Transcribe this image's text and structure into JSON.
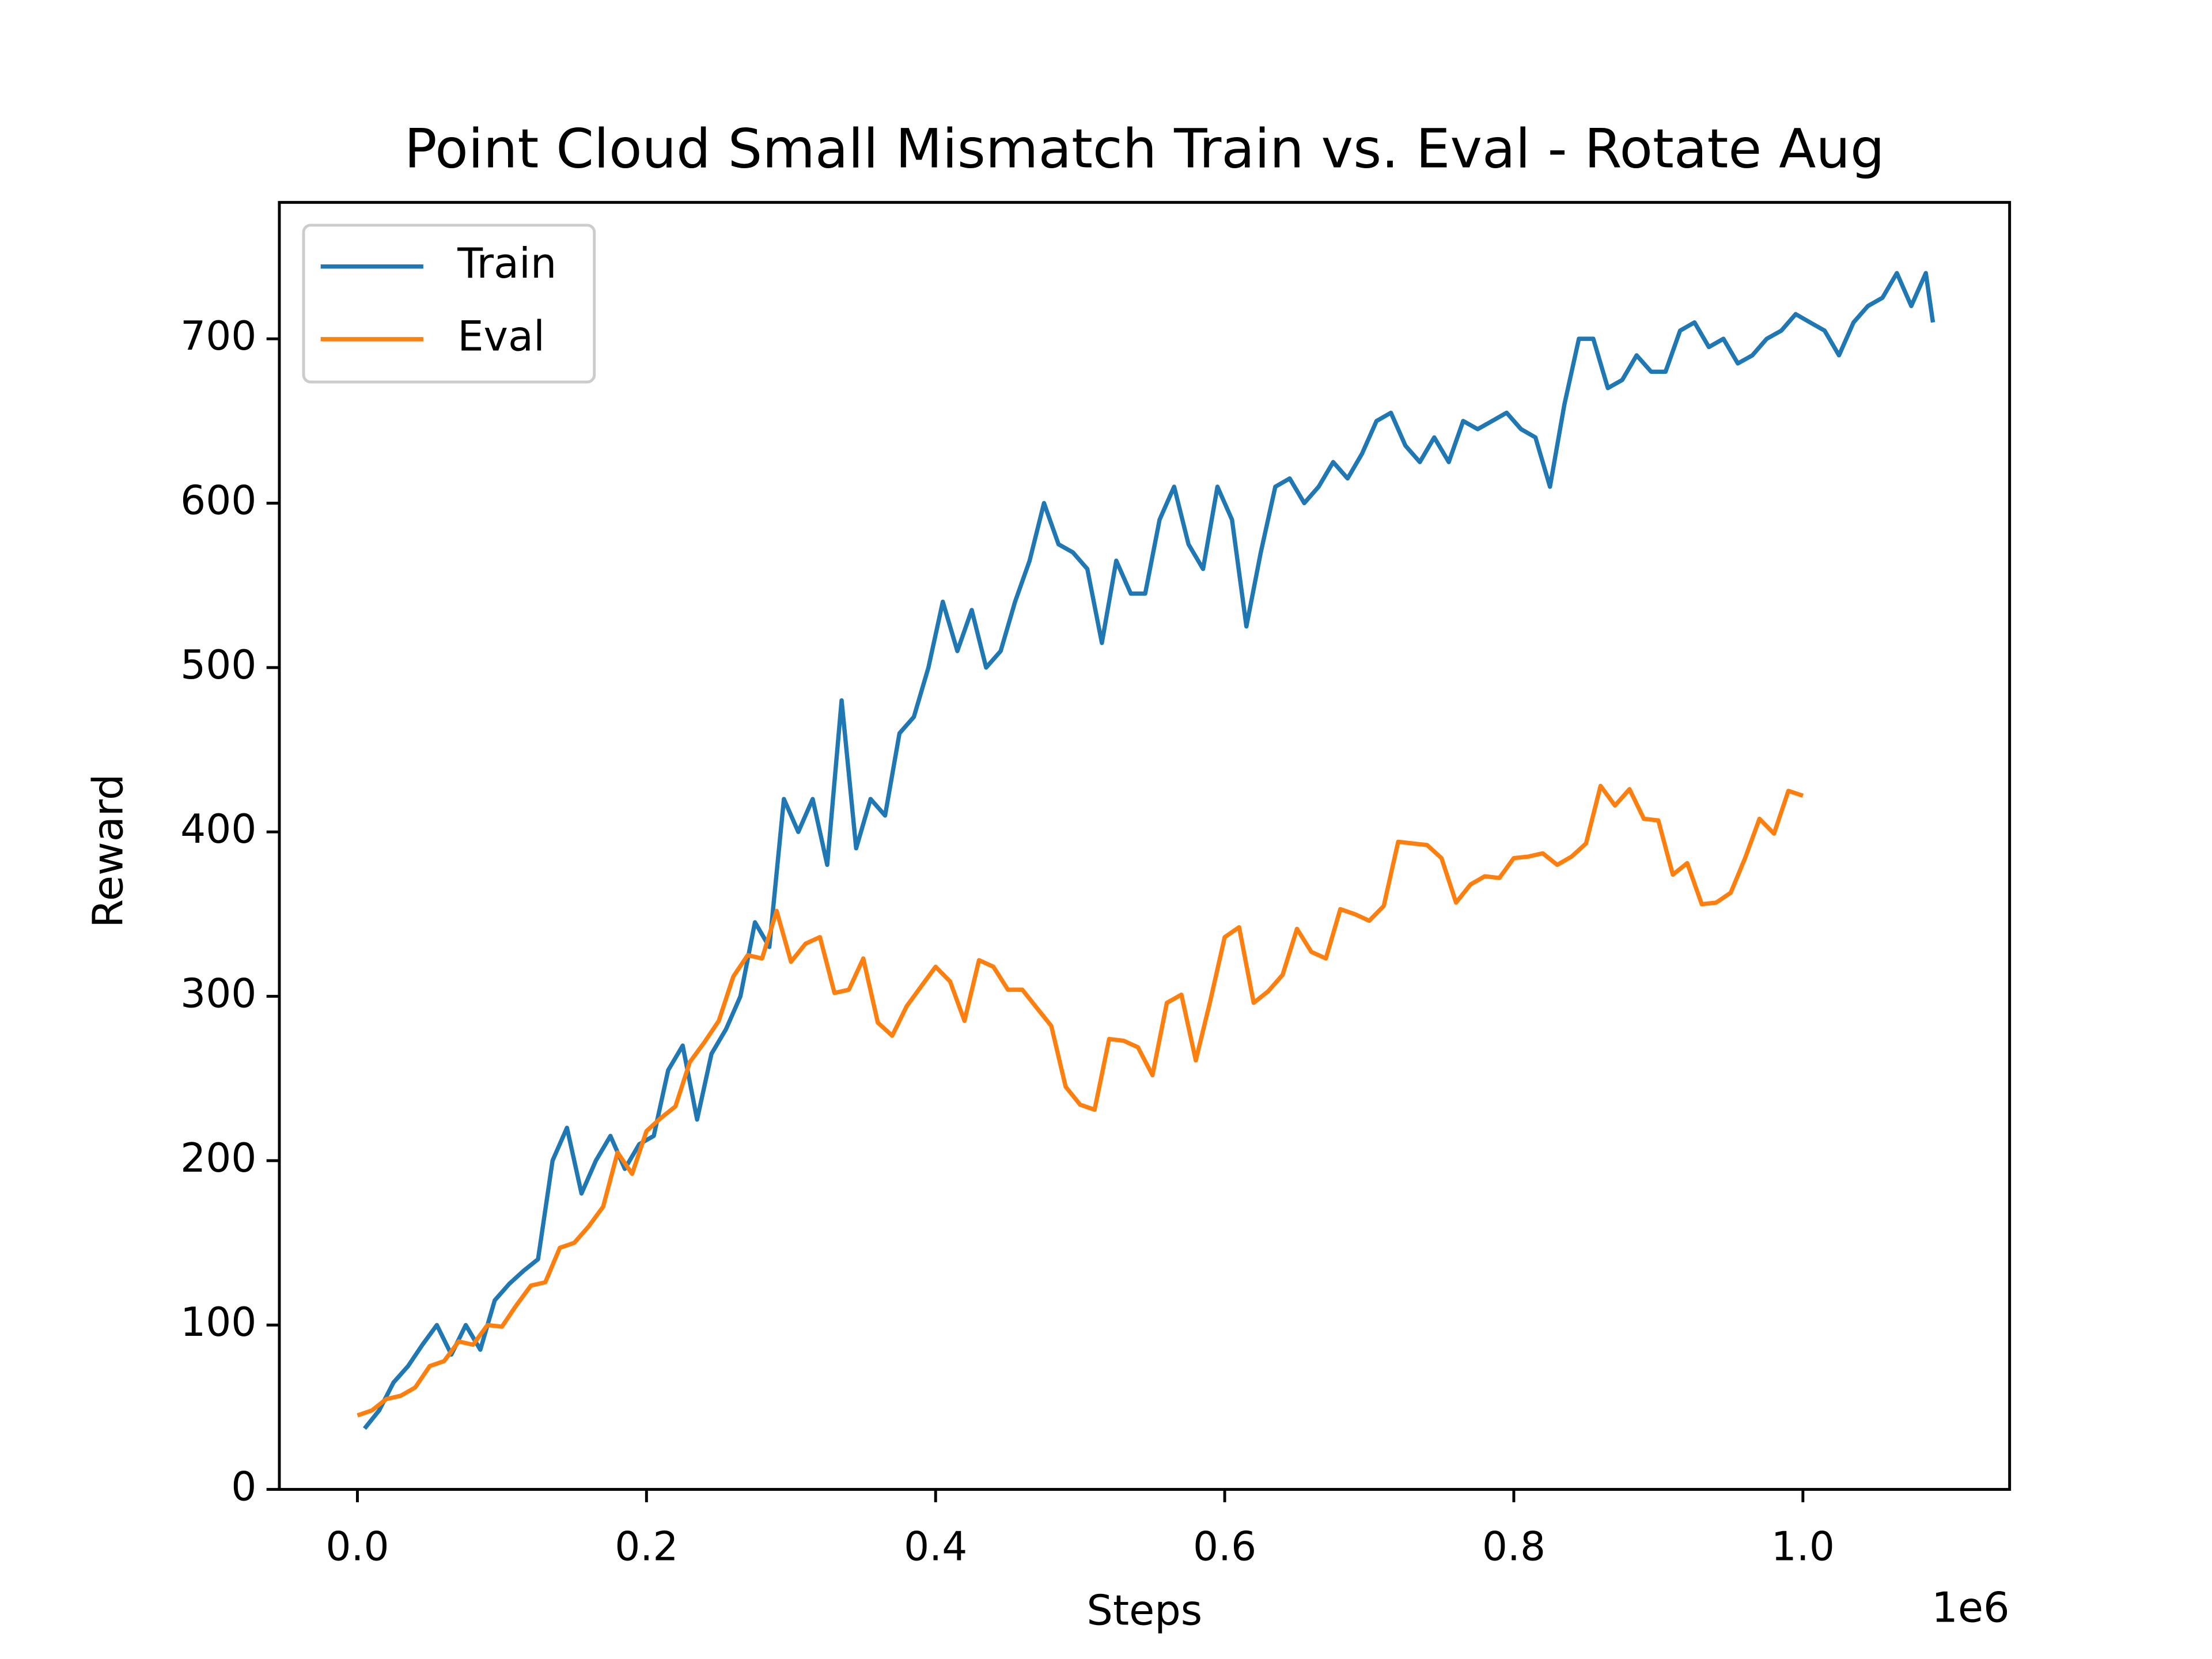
{
  "chart_data": {
    "type": "line",
    "title": "Point Cloud Small Mismatch Train vs. Eval - Rotate Aug",
    "x_label": "Steps",
    "y_label": "Reward",
    "x_offset_label": "1e6",
    "legend": "upper left",
    "xlim": [
      -54000,
      1143000
    ],
    "ylim": [
      0,
      783
    ],
    "xticks": [
      {
        "value": 0,
        "label": "0.0"
      },
      {
        "value": 200000,
        "label": "0.2"
      },
      {
        "value": 400000,
        "label": "0.4"
      },
      {
        "value": 600000,
        "label": "0.6"
      },
      {
        "value": 800000,
        "label": "0.8"
      },
      {
        "value": 1000000,
        "label": "1.0"
      }
    ],
    "yticks": [
      0,
      100,
      200,
      300,
      400,
      500,
      600,
      700
    ],
    "series": [
      {
        "name": "Train",
        "color": "#1f77b4",
        "x": [
          5000,
          15000,
          25000,
          35000,
          45000,
          55000,
          65000,
          75000,
          85000,
          95000,
          105000,
          115000,
          125000,
          135000,
          145000,
          155000,
          165000,
          175000,
          185000,
          195000,
          205000,
          215000,
          225000,
          235000,
          245000,
          255000,
          265000,
          275000,
          285000,
          295000,
          305000,
          315000,
          325000,
          335000,
          345000,
          355000,
          365000,
          375000,
          385000,
          395000,
          405000,
          415000,
          425000,
          435000,
          445000,
          455000,
          465000,
          475000,
          485000,
          495000,
          505000,
          515000,
          525000,
          535000,
          545000,
          555000,
          565000,
          575000,
          585000,
          595000,
          605000,
          615000,
          625000,
          635000,
          645000,
          655000,
          665000,
          675000,
          685000,
          695000,
          705000,
          715000,
          725000,
          735000,
          745000,
          755000,
          765000,
          775000,
          785000,
          795000,
          805000,
          815000,
          825000,
          835000,
          845000,
          855000,
          865000,
          875000,
          885000,
          895000,
          905000,
          915000,
          925000,
          935000,
          945000,
          955000,
          965000,
          975000,
          985000,
          995000,
          1005000,
          1015000,
          1025000,
          1035000,
          1045000,
          1055000,
          1065000,
          1075000,
          1085000,
          1090000
        ],
        "values": [
          37,
          48,
          65,
          75,
          88,
          100,
          82,
          100,
          85,
          115,
          125,
          133,
          140,
          200,
          220,
          180,
          200,
          215,
          195,
          210,
          215,
          255,
          270,
          225,
          265,
          280,
          300,
          345,
          330,
          420,
          400,
          420,
          380,
          480,
          390,
          420,
          410,
          460,
          470,
          500,
          540,
          510,
          535,
          500,
          510,
          540,
          565,
          600,
          575,
          570,
          560,
          515,
          565,
          545,
          545,
          590,
          610,
          575,
          560,
          610,
          590,
          525,
          570,
          610,
          615,
          600,
          610,
          625,
          615,
          630,
          650,
          655,
          635,
          625,
          640,
          625,
          650,
          645,
          650,
          655,
          645,
          640,
          610,
          660,
          700,
          700,
          670,
          675,
          690,
          680,
          680,
          705,
          710,
          695,
          700,
          685,
          690,
          700,
          705,
          715,
          710,
          705,
          690,
          710,
          720,
          725,
          740,
          720,
          740,
          710
        ]
      },
      {
        "name": "Eval",
        "color": "#ff7f0e",
        "x": [
          0,
          10000,
          20000,
          30000,
          40000,
          50000,
          60000,
          70000,
          80000,
          90000,
          100000,
          110000,
          120000,
          130000,
          140000,
          150000,
          160000,
          170000,
          180000,
          190000,
          200000,
          210000,
          220000,
          230000,
          240000,
          250000,
          260000,
          270000,
          280000,
          290000,
          300000,
          310000,
          320000,
          330000,
          340000,
          350000,
          360000,
          370000,
          380000,
          390000,
          400000,
          410000,
          420000,
          430000,
          440000,
          450000,
          460000,
          470000,
          480000,
          490000,
          500000,
          510000,
          520000,
          530000,
          540000,
          550000,
          560000,
          570000,
          580000,
          590000,
          600000,
          610000,
          620000,
          630000,
          640000,
          650000,
          660000,
          670000,
          680000,
          690000,
          700000,
          710000,
          720000,
          730000,
          740000,
          750000,
          760000,
          770000,
          780000,
          790000,
          800000,
          810000,
          820000,
          830000,
          840000,
          850000,
          860000,
          870000,
          880000,
          890000,
          900000,
          910000,
          920000,
          930000,
          940000,
          950000,
          960000,
          970000,
          980000,
          990000,
          1000000
        ],
        "values": [
          45,
          48,
          55,
          57,
          62,
          75,
          78,
          90,
          88,
          100,
          99,
          112,
          124,
          126,
          147,
          150,
          160,
          172,
          205,
          192,
          218,
          226,
          233,
          260,
          272,
          285,
          312,
          325,
          323,
          352,
          321,
          332,
          336,
          302,
          304,
          323,
          284,
          276,
          294,
          306,
          318,
          309,
          285,
          322,
          318,
          304,
          304,
          293,
          282,
          245,
          234,
          231,
          274,
          273,
          269,
          252,
          296,
          301,
          261,
          297,
          336,
          342,
          296,
          303,
          313,
          341,
          327,
          323,
          353,
          350,
          346,
          355,
          394,
          393,
          392,
          384,
          357,
          368,
          373,
          372,
          384,
          385,
          387,
          380,
          385,
          393,
          428,
          416,
          426,
          408,
          407,
          374,
          381,
          356,
          357,
          363,
          384,
          408,
          399,
          425,
          422
        ]
      }
    ]
  }
}
